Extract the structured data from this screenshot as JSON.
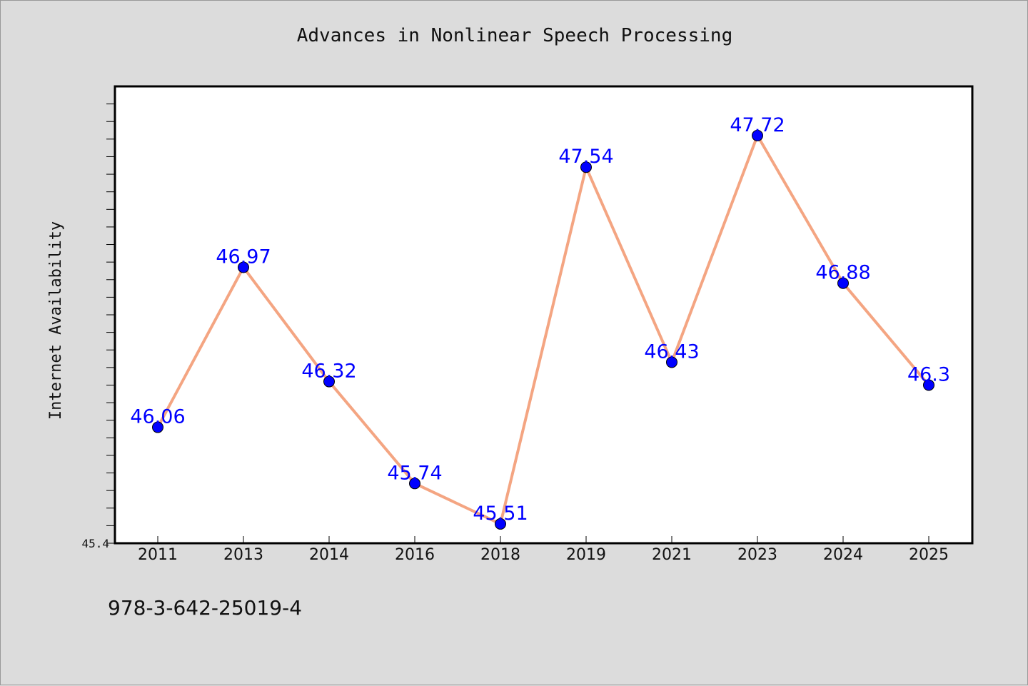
{
  "chart_data": {
    "type": "line",
    "title": "Advances in Nonlinear Speech Processing",
    "xlabel": "",
    "ylabel": "Internet Availability",
    "categories": [
      "2011",
      "2013",
      "2014",
      "2016",
      "2018",
      "2019",
      "2021",
      "2023",
      "2024",
      "2025"
    ],
    "series": [
      {
        "values": [
          46.06,
          46.97,
          46.32,
          45.74,
          45.51,
          47.54,
          46.43,
          47.72,
          46.88,
          46.3
        ]
      }
    ],
    "data_labels": [
      "46.06",
      "46.97",
      "46.32",
      "45.74",
      "45.51",
      "47.54",
      "46.43",
      "47.72",
      "46.88",
      "46.3"
    ],
    "ylim": [
      45.4,
      48.0
    ],
    "y_tick_label": "45.4",
    "grid": false,
    "legend": "none",
    "colors": {
      "line": "#f4a582",
      "marker": "#0000ff",
      "data_label": "#0000ff",
      "plot_background": "#ffffff",
      "page_background": "#dcdcdc"
    }
  },
  "footer": {
    "isbn": "978-3-642-25019-4"
  }
}
